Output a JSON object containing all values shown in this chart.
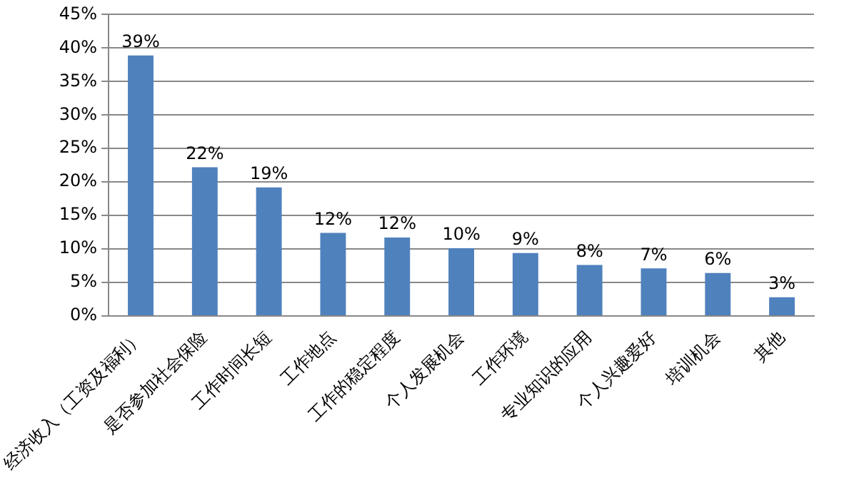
{
  "chart_data": {
    "type": "bar",
    "categories": [
      "经济收入（工资及福利）",
      "是否参加社会保险",
      "工作时间长短",
      "工作地点",
      "工作的稳定程度",
      "个人发展机会",
      "工作环境",
      "专业知识的应用",
      "个人兴趣爱好",
      "培训机会",
      "其他"
    ],
    "values": [
      38.9,
      22.2,
      19.2,
      12.4,
      11.7,
      10.1,
      9.4,
      7.6,
      7.1,
      6.4,
      2.8
    ],
    "value_labels": [
      "39%",
      "22%",
      "19%",
      "12%",
      "12%",
      "10%",
      "9%",
      "8%",
      "7%",
      "6%",
      "3%"
    ],
    "color": "#4f81bd",
    "ylim": [
      0,
      45
    ],
    "yticks": [
      {
        "value": 0,
        "label": "0%"
      },
      {
        "value": 5,
        "label": "5%"
      },
      {
        "value": 10,
        "label": "10%"
      },
      {
        "value": 15,
        "label": "15%"
      },
      {
        "value": 20,
        "label": "20%"
      },
      {
        "value": 25,
        "label": "25%"
      },
      {
        "value": 30,
        "label": "30%"
      },
      {
        "value": 35,
        "label": "35%"
      },
      {
        "value": 40,
        "label": "40%"
      },
      {
        "value": 45,
        "label": "45%"
      }
    ],
    "grid": "y",
    "legend": false
  }
}
